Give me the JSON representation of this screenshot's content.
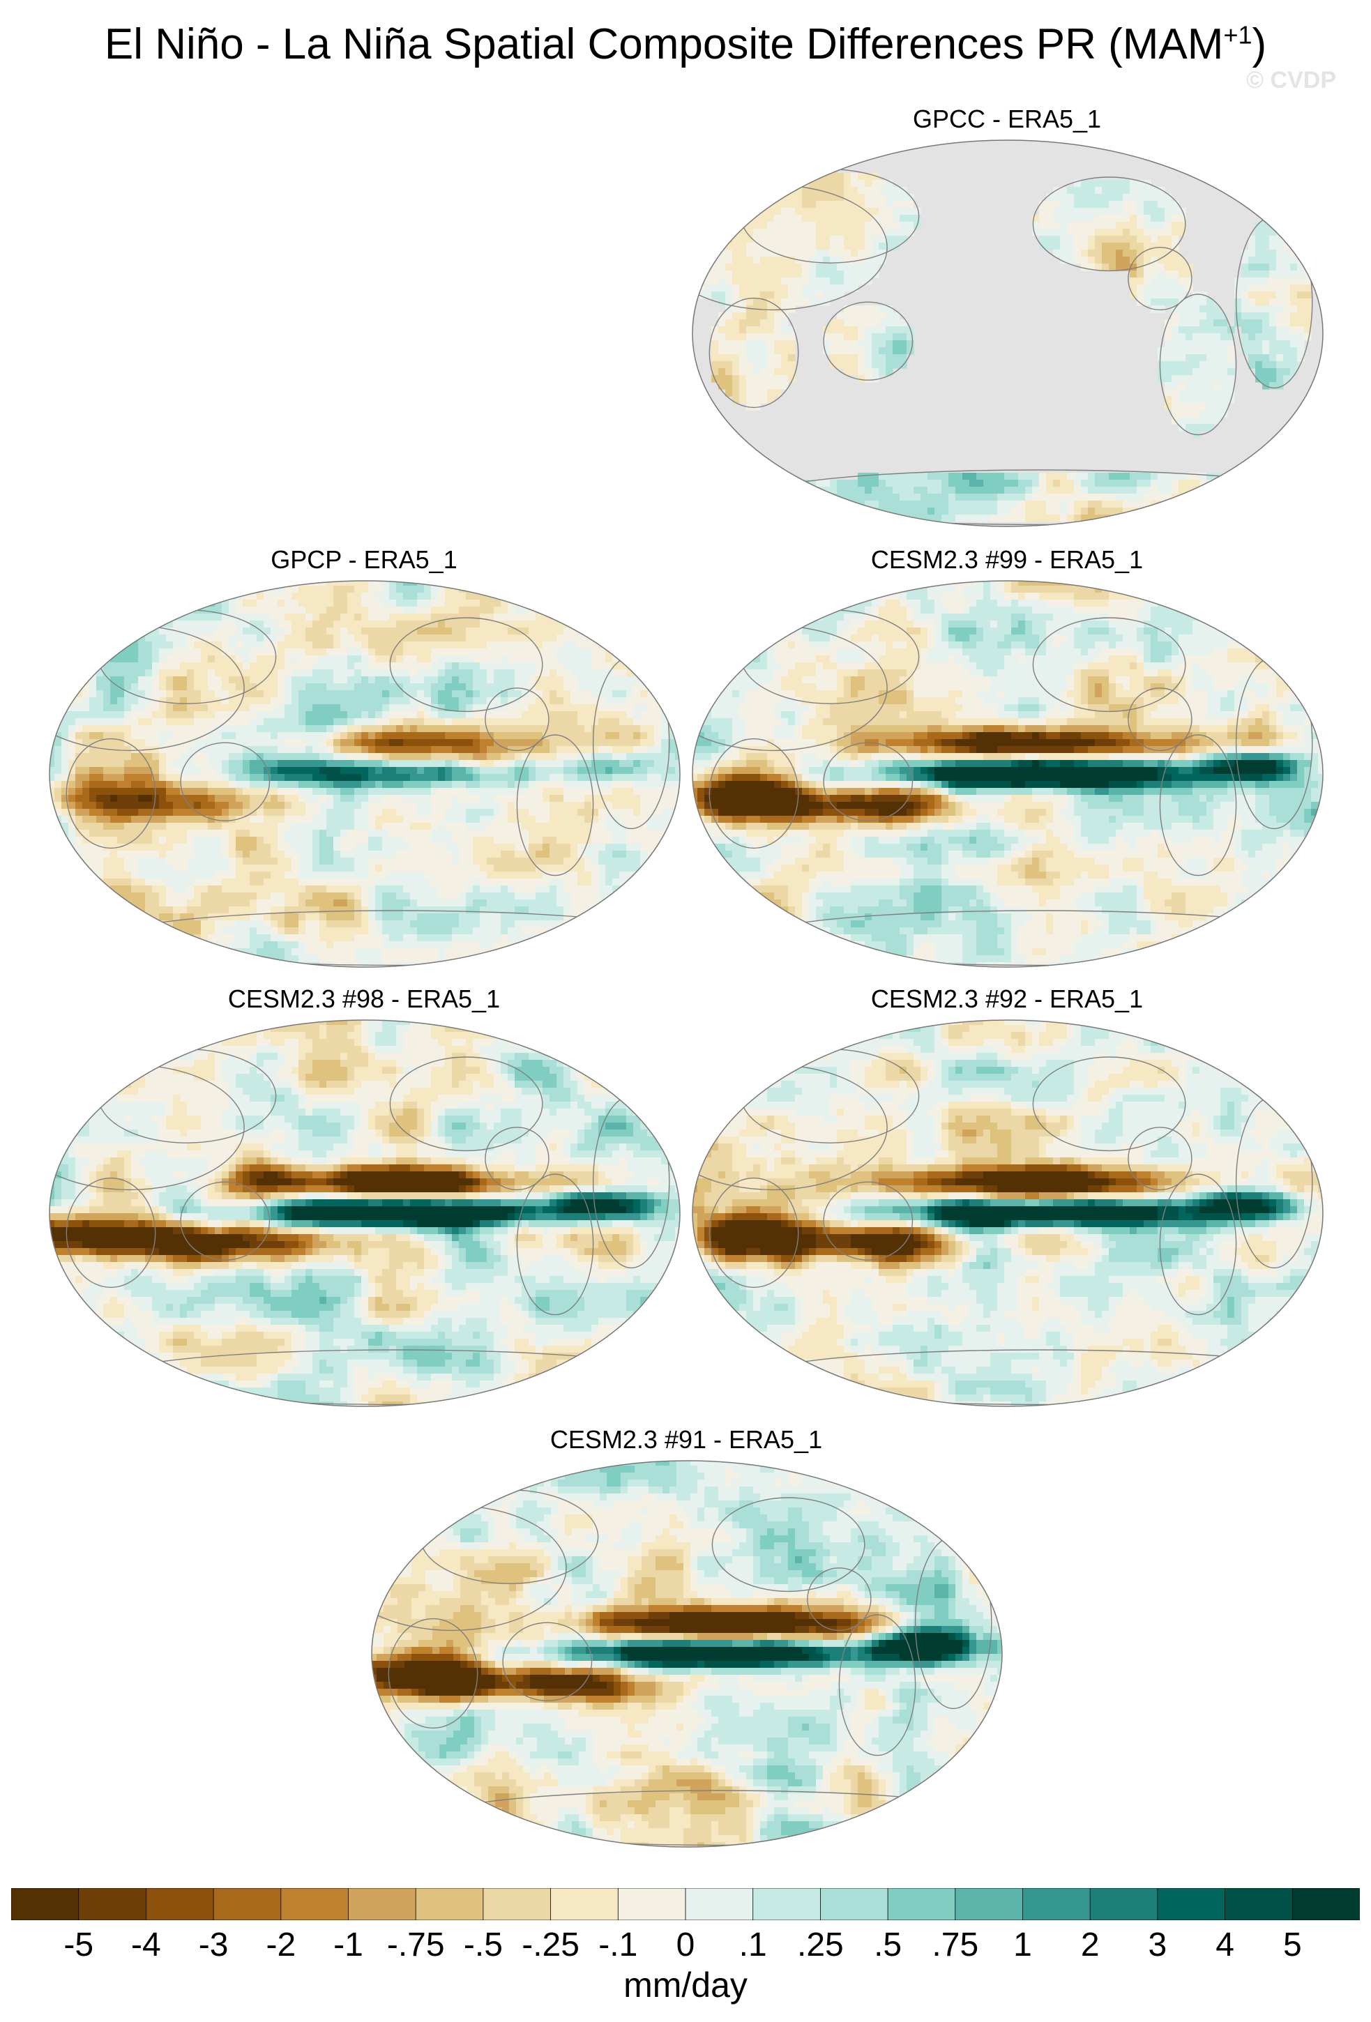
{
  "title": {
    "main": "El Niño - La Niña Spatial Composite Differences PR (MAM",
    "superscript": "+1",
    "close": ")"
  },
  "watermark": "© CVDP",
  "panels": [
    {
      "id": "gpcc",
      "title": "GPCC - ERA5_1",
      "land_only": true,
      "enso_strength": 0
    },
    {
      "id": "gpcp",
      "title": "GPCP - ERA5_1",
      "land_only": false,
      "enso_strength": 0.45
    },
    {
      "id": "cesm99",
      "title": "CESM2.3 #99 - ERA5_1",
      "land_only": false,
      "enso_strength": 1.0
    },
    {
      "id": "cesm98",
      "title": "CESM2.3 #98 - ERA5_1",
      "land_only": false,
      "enso_strength": 1.0
    },
    {
      "id": "cesm92",
      "title": "CESM2.3 #92 - ERA5_1",
      "land_only": false,
      "enso_strength": 0.95
    },
    {
      "id": "cesm91",
      "title": "CESM2.3 #91 - ERA5_1",
      "land_only": false,
      "enso_strength": 1.0
    }
  ],
  "colorbar": {
    "units": "mm/day",
    "labels": [
      "-5",
      "-4",
      "-3",
      "-2",
      "-1",
      "-.75",
      "-.5",
      "-.25",
      "-.1",
      "0",
      ".1",
      ".25",
      ".5",
      ".75",
      "1",
      "2",
      "3",
      "4",
      "5"
    ],
    "colors": [
      "#543005",
      "#6f3f0a",
      "#8c510a",
      "#a8691a",
      "#bf812d",
      "#d1a45e",
      "#dfc27d",
      "#ecd8a6",
      "#f6e8c3",
      "#f5f0e4",
      "#e7f2ef",
      "#c7eae5",
      "#a9dfd6",
      "#80cdc1",
      "#5ab4a9",
      "#35978f",
      "#1d8078",
      "#01665e",
      "#01534a",
      "#003c30"
    ]
  }
}
